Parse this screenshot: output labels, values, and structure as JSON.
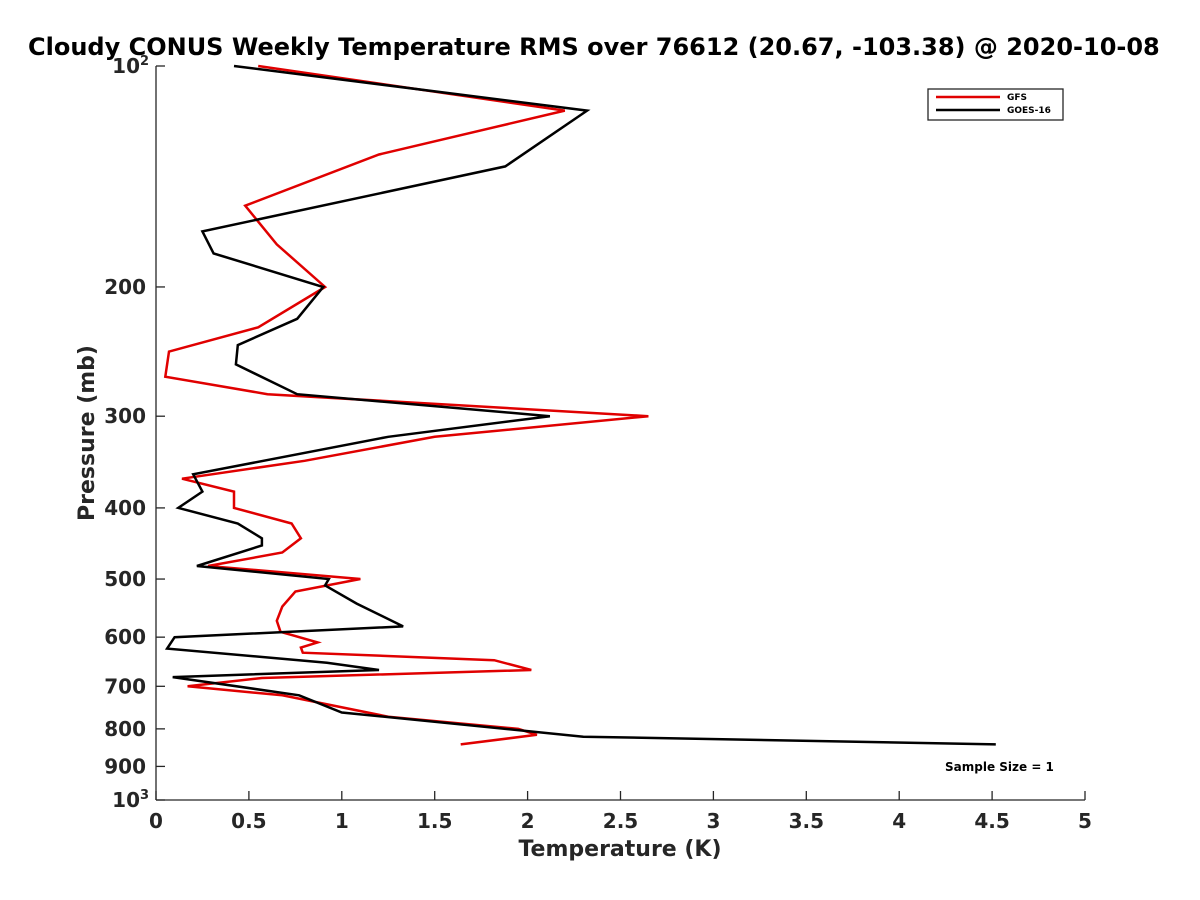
{
  "chart_data": {
    "type": "line",
    "title": "Cloudy CONUS Weekly Temperature RMS over 76612 (20.67, -103.38) @ 2020-10-08",
    "xlabel": "Temperature (K)",
    "ylabel": "Pressure (mb)",
    "xlim": [
      0,
      5
    ],
    "ylim": [
      100,
      1000
    ],
    "yscale": "log",
    "y_reversed": true,
    "x_ticks": [
      0,
      0.5,
      1,
      1.5,
      2,
      2.5,
      3,
      3.5,
      4,
      4.5,
      5
    ],
    "x_tick_labels": [
      "0",
      "0.5",
      "1",
      "1.5",
      "2",
      "2.5",
      "3",
      "3.5",
      "4",
      "4.5",
      "5"
    ],
    "y_ticks": [
      100,
      200,
      300,
      400,
      500,
      600,
      700,
      800,
      900,
      1000
    ],
    "y_tick_labels": [
      {
        "base": "10",
        "exp": "2"
      },
      {
        "base": "200",
        "exp": ""
      },
      {
        "base": "300",
        "exp": ""
      },
      {
        "base": "400",
        "exp": ""
      },
      {
        "base": "500",
        "exp": ""
      },
      {
        "base": "600",
        "exp": ""
      },
      {
        "base": "700",
        "exp": ""
      },
      {
        "base": "800",
        "exp": ""
      },
      {
        "base": "900",
        "exp": ""
      },
      {
        "base": "10",
        "exp": "3"
      }
    ],
    "legend_position": "top-right",
    "annotation": "Sample Size = 1",
    "series": [
      {
        "name": "GFS",
        "color": "#e00000",
        "points": [
          [
            0.55,
            100
          ],
          [
            2.2,
            115
          ],
          [
            1.2,
            132
          ],
          [
            0.48,
            155
          ],
          [
            0.65,
            175
          ],
          [
            0.91,
            200
          ],
          [
            0.55,
            227
          ],
          [
            0.07,
            245
          ],
          [
            0.05,
            265
          ],
          [
            0.6,
            280
          ],
          [
            2.65,
            300
          ],
          [
            1.5,
            320
          ],
          [
            0.8,
            345
          ],
          [
            0.14,
            365
          ],
          [
            0.42,
            380
          ],
          [
            0.42,
            400
          ],
          [
            0.73,
            420
          ],
          [
            0.78,
            440
          ],
          [
            0.68,
            460
          ],
          [
            0.28,
            480
          ],
          [
            1.1,
            500
          ],
          [
            0.75,
            520
          ],
          [
            0.68,
            545
          ],
          [
            0.65,
            570
          ],
          [
            0.67,
            590
          ],
          [
            0.87,
            610
          ],
          [
            0.78,
            620
          ],
          [
            0.79,
            630
          ],
          [
            1.82,
            645
          ],
          [
            2.02,
            665
          ],
          [
            0.57,
            682
          ],
          [
            0.17,
            700
          ],
          [
            0.68,
            720
          ],
          [
            1.25,
            770
          ],
          [
            1.95,
            800
          ],
          [
            2.05,
            815
          ],
          [
            1.64,
            840
          ]
        ]
      },
      {
        "name": "GOES-16",
        "color": "#000000",
        "points": [
          [
            0.42,
            100
          ],
          [
            2.32,
            115
          ],
          [
            1.88,
            137
          ],
          [
            0.25,
            168
          ],
          [
            0.31,
            180
          ],
          [
            0.9,
            200
          ],
          [
            0.76,
            221
          ],
          [
            0.44,
            240
          ],
          [
            0.43,
            255
          ],
          [
            0.76,
            280
          ],
          [
            2.12,
            300
          ],
          [
            1.25,
            320
          ],
          [
            0.2,
            360
          ],
          [
            0.25,
            380
          ],
          [
            0.12,
            400
          ],
          [
            0.44,
            420
          ],
          [
            0.57,
            440
          ],
          [
            0.57,
            450
          ],
          [
            0.22,
            480
          ],
          [
            0.93,
            500
          ],
          [
            0.91,
            510
          ],
          [
            1.08,
            540
          ],
          [
            1.33,
            580
          ],
          [
            0.1,
            600
          ],
          [
            0.06,
            622
          ],
          [
            0.92,
            650
          ],
          [
            1.2,
            665
          ],
          [
            0.09,
            680
          ],
          [
            0.77,
            720
          ],
          [
            1.0,
            760
          ],
          [
            2.3,
            820
          ],
          [
            4.52,
            840
          ]
        ]
      }
    ]
  }
}
